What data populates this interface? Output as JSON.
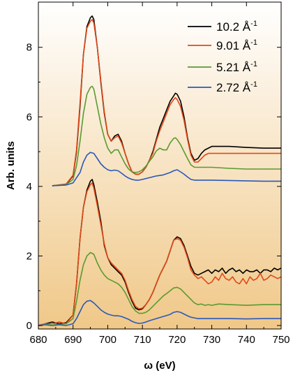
{
  "chart_data": {
    "type": "line",
    "title": "",
    "xlabel": "ω (eV)",
    "ylabel": "Arb. units",
    "xlim": [
      680,
      750
    ],
    "ylim": [
      -0.1,
      9.3
    ],
    "xticks": [
      680,
      690,
      700,
      710,
      720,
      730,
      740,
      750
    ],
    "yticks": [
      0,
      2,
      4,
      6,
      8
    ],
    "grid": false,
    "legend": {
      "position": "top-right"
    },
    "background": {
      "style": "vertical-gradient",
      "top": "#ffffff",
      "bottom": "#f0c888"
    },
    "series": [
      {
        "name": "10.2 Å⁻¹",
        "label_main": "10.2 Å",
        "label_sup": "-1",
        "color": "#000000",
        "x": [
          684,
          688,
          690,
          691,
          692,
          693,
          694,
          695,
          695.5,
          696,
          697,
          698,
          699,
          700,
          701,
          702,
          703,
          704,
          705,
          706,
          707,
          708,
          709,
          710,
          711,
          712,
          713,
          714,
          715,
          716,
          717,
          718,
          719,
          719.5,
          720,
          721,
          722,
          723,
          724,
          725,
          726,
          727,
          728,
          729,
          730,
          732,
          735,
          740,
          745,
          750
        ],
        "y": [
          4.02,
          4.06,
          4.3,
          5.0,
          6.3,
          7.8,
          8.6,
          8.85,
          8.9,
          8.8,
          8.0,
          7.0,
          6.1,
          5.5,
          5.3,
          5.45,
          5.5,
          5.3,
          4.95,
          4.65,
          4.42,
          4.35,
          4.35,
          4.42,
          4.55,
          4.75,
          5.0,
          5.35,
          5.7,
          5.95,
          6.2,
          6.45,
          6.6,
          6.68,
          6.65,
          6.45,
          6.0,
          5.4,
          4.95,
          4.75,
          4.8,
          4.95,
          5.05,
          5.1,
          5.15,
          5.15,
          5.15,
          5.12,
          5.1,
          5.1
        ]
      },
      {
        "name": "9.01 Å⁻¹",
        "label_main": "9.01 Å",
        "label_sup": "-1",
        "color": "#e04818",
        "x": [
          684,
          688,
          690,
          691,
          692,
          693,
          694,
          695,
          695.5,
          696,
          697,
          698,
          699,
          700,
          701,
          702,
          703,
          704,
          705,
          706,
          707,
          708,
          709,
          710,
          711,
          712,
          713,
          714,
          715,
          716,
          717,
          718,
          719,
          719.5,
          720,
          721,
          722,
          723,
          724,
          725,
          726,
          727,
          728,
          729,
          730,
          732,
          735,
          740,
          745,
          750
        ],
        "y": [
          4.02,
          4.07,
          4.32,
          5.05,
          6.4,
          7.8,
          8.55,
          8.75,
          8.8,
          8.7,
          8.0,
          7.05,
          6.15,
          5.5,
          5.3,
          5.4,
          5.45,
          5.25,
          4.95,
          4.65,
          4.42,
          4.35,
          4.35,
          4.42,
          4.55,
          4.75,
          4.95,
          5.3,
          5.6,
          5.85,
          6.1,
          6.35,
          6.5,
          6.55,
          6.5,
          6.3,
          5.9,
          5.35,
          4.9,
          4.7,
          4.7,
          4.8,
          4.9,
          4.95,
          4.95,
          4.95,
          4.95,
          4.95,
          4.95,
          4.95
        ]
      },
      {
        "name": "5.21 Å⁻¹",
        "label_main": "5.21 Å",
        "label_sup": "-1",
        "color": "#5a9a30",
        "x": [
          684,
          688,
          690,
          691,
          692,
          693,
          694,
          695,
          695.5,
          696,
          697,
          698,
          699,
          700,
          701,
          702,
          703,
          704,
          705,
          706,
          707,
          708,
          709,
          710,
          711,
          712,
          713,
          714,
          715,
          716,
          717,
          718,
          719,
          719.5,
          720,
          721,
          722,
          723,
          724,
          725,
          726,
          727,
          728,
          729,
          730,
          735,
          740,
          745,
          750
        ],
        "y": [
          4.02,
          4.05,
          4.2,
          4.6,
          5.3,
          6.1,
          6.65,
          6.85,
          6.88,
          6.8,
          6.3,
          5.8,
          5.4,
          5.1,
          4.95,
          5.05,
          5.05,
          4.85,
          4.65,
          4.5,
          4.42,
          4.4,
          4.42,
          4.48,
          4.58,
          4.72,
          4.85,
          5.02,
          5.1,
          5.05,
          5.05,
          5.25,
          5.38,
          5.4,
          5.35,
          5.2,
          5.0,
          4.8,
          4.62,
          4.55,
          4.55,
          4.55,
          4.55,
          4.55,
          4.55,
          4.52,
          4.5,
          4.5,
          4.5
        ]
      },
      {
        "name": "2.72 Å⁻¹",
        "label_main": "2.72 Å",
        "label_sup": "-1",
        "color": "#2a58b8",
        "x": [
          684,
          688,
          690,
          692,
          693,
          694,
          695,
          696,
          697,
          698,
          699,
          700,
          701,
          702,
          703,
          704,
          705,
          706,
          707,
          708,
          709,
          710,
          712,
          714,
          716,
          718,
          719,
          720,
          721,
          722,
          723,
          724,
          725,
          726,
          728,
          730,
          735,
          740,
          745,
          750
        ],
        "y": [
          4.02,
          4.04,
          4.1,
          4.4,
          4.7,
          4.9,
          4.98,
          4.95,
          4.8,
          4.65,
          4.55,
          4.48,
          4.45,
          4.47,
          4.45,
          4.38,
          4.3,
          4.24,
          4.2,
          4.18,
          4.18,
          4.2,
          4.25,
          4.3,
          4.33,
          4.4,
          4.45,
          4.48,
          4.42,
          4.35,
          4.27,
          4.2,
          4.18,
          4.18,
          4.18,
          4.18,
          4.17,
          4.16,
          4.15,
          4.15
        ]
      },
      {
        "name": "10.2 Å⁻¹ (lower)",
        "color": "#000000",
        "x": [
          680,
          682,
          684,
          686,
          688,
          690,
          691,
          692,
          693,
          694,
          695,
          695.5,
          696,
          697,
          698,
          699,
          700,
          701,
          702,
          703,
          704,
          705,
          706,
          707,
          708,
          709,
          710,
          711,
          712,
          713,
          714,
          715,
          716,
          717,
          718,
          719,
          720,
          721,
          722,
          723,
          724,
          725,
          726,
          727,
          728,
          729,
          730,
          731,
          732,
          733,
          734,
          735,
          736,
          737,
          738,
          739,
          740,
          741,
          742,
          743,
          744,
          745,
          746,
          747,
          748,
          749,
          750
        ],
        "y": [
          0.0,
          0.05,
          0.1,
          0.05,
          0.08,
          0.3,
          1.2,
          2.5,
          3.4,
          3.9,
          4.15,
          4.2,
          4.05,
          3.55,
          3.0,
          2.3,
          1.95,
          1.75,
          1.65,
          1.55,
          1.45,
          1.25,
          0.95,
          0.7,
          0.5,
          0.45,
          0.48,
          0.6,
          0.75,
          0.95,
          1.2,
          1.45,
          1.65,
          1.85,
          2.15,
          2.45,
          2.55,
          2.5,
          2.3,
          2.0,
          1.7,
          1.5,
          1.45,
          1.5,
          1.55,
          1.6,
          1.5,
          1.6,
          1.55,
          1.65,
          1.5,
          1.6,
          1.65,
          1.55,
          1.6,
          1.5,
          1.6,
          1.55,
          1.55,
          1.6,
          1.5,
          1.6,
          1.6,
          1.55,
          1.65,
          1.6,
          1.65
        ]
      },
      {
        "name": "9.01 Å⁻¹ (lower)",
        "color": "#e04818",
        "x": [
          680,
          682,
          684,
          686,
          688,
          690,
          691,
          692,
          693,
          694,
          695,
          695.5,
          696,
          697,
          698,
          699,
          700,
          701,
          702,
          703,
          704,
          705,
          706,
          707,
          708,
          709,
          710,
          711,
          712,
          713,
          714,
          715,
          716,
          717,
          718,
          719,
          720,
          721,
          722,
          723,
          724,
          725,
          726,
          727,
          728,
          729,
          730,
          731,
          732,
          733,
          734,
          735,
          736,
          737,
          738,
          739,
          740,
          741,
          742,
          743,
          744,
          745,
          746,
          747,
          748,
          749,
          750
        ],
        "y": [
          0.0,
          0.05,
          0.05,
          0.1,
          0.05,
          0.3,
          1.2,
          2.5,
          3.4,
          3.85,
          4.05,
          4.1,
          3.95,
          3.45,
          2.9,
          2.35,
          1.95,
          1.8,
          1.7,
          1.6,
          1.5,
          1.3,
          1.0,
          0.75,
          0.55,
          0.48,
          0.5,
          0.6,
          0.75,
          0.95,
          1.2,
          1.45,
          1.65,
          1.85,
          2.15,
          2.45,
          2.5,
          2.45,
          2.25,
          1.95,
          1.6,
          1.45,
          1.35,
          1.4,
          1.3,
          1.2,
          1.25,
          1.4,
          1.3,
          1.5,
          1.35,
          1.3,
          1.4,
          1.25,
          1.2,
          1.35,
          1.2,
          1.4,
          1.3,
          1.35,
          1.5,
          1.3,
          1.35,
          1.45,
          1.4,
          1.35,
          1.4
        ]
      },
      {
        "name": "5.21 Å⁻¹ (lower)",
        "color": "#5a9a30",
        "x": [
          680,
          682,
          684,
          686,
          688,
          690,
          691,
          692,
          693,
          694,
          695,
          696,
          697,
          698,
          699,
          700,
          701,
          702,
          703,
          704,
          705,
          706,
          707,
          708,
          709,
          710,
          711,
          712,
          713,
          714,
          715,
          716,
          717,
          718,
          719,
          720,
          721,
          722,
          723,
          724,
          725,
          726,
          727,
          728,
          729,
          730,
          732,
          735,
          740,
          745,
          750
        ],
        "y": [
          0.0,
          0.03,
          0.05,
          0.03,
          0.05,
          0.2,
          0.7,
          1.3,
          1.75,
          2.0,
          2.1,
          2.05,
          1.8,
          1.6,
          1.45,
          1.35,
          1.3,
          1.25,
          1.2,
          1.1,
          0.95,
          0.75,
          0.55,
          0.42,
          0.35,
          0.35,
          0.38,
          0.45,
          0.55,
          0.65,
          0.75,
          0.85,
          0.92,
          1.0,
          1.08,
          1.1,
          1.05,
          0.95,
          0.85,
          0.75,
          0.65,
          0.6,
          0.62,
          0.58,
          0.6,
          0.58,
          0.62,
          0.6,
          0.58,
          0.6,
          0.6
        ]
      },
      {
        "name": "2.72 Å⁻¹ (lower)",
        "color": "#2a58b8",
        "x": [
          680,
          682,
          684,
          686,
          688,
          690,
          691,
          692,
          693,
          694,
          695,
          696,
          697,
          698,
          699,
          700,
          701,
          702,
          703,
          704,
          705,
          706,
          707,
          708,
          709,
          710,
          711,
          712,
          714,
          716,
          718,
          719,
          720,
          721,
          722,
          723,
          724,
          725,
          726,
          728,
          730,
          735,
          740,
          745,
          750
        ],
        "y": [
          0.0,
          0.02,
          0.0,
          0.02,
          0.0,
          0.05,
          0.2,
          0.4,
          0.6,
          0.7,
          0.72,
          0.65,
          0.55,
          0.45,
          0.38,
          0.33,
          0.3,
          0.28,
          0.28,
          0.26,
          0.22,
          0.18,
          0.12,
          0.08,
          0.06,
          0.07,
          0.1,
          0.14,
          0.2,
          0.26,
          0.32,
          0.38,
          0.4,
          0.38,
          0.33,
          0.28,
          0.24,
          0.22,
          0.2,
          0.2,
          0.2,
          0.2,
          0.19,
          0.2,
          0.2
        ]
      }
    ]
  }
}
